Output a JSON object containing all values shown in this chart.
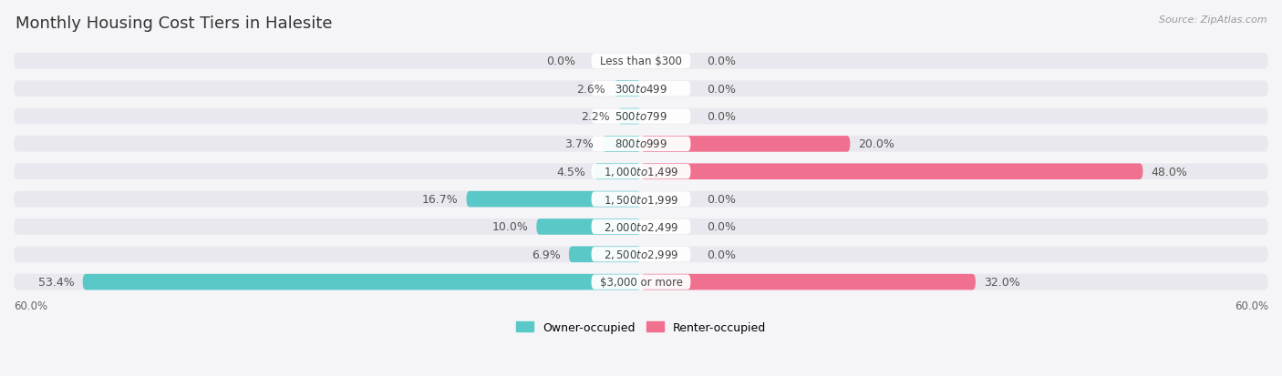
{
  "title": "Monthly Housing Cost Tiers in Halesite",
  "source": "Source: ZipAtlas.com",
  "categories": [
    "Less than $300",
    "$300 to $499",
    "$500 to $799",
    "$800 to $999",
    "$1,000 to $1,499",
    "$1,500 to $1,999",
    "$2,000 to $2,499",
    "$2,500 to $2,999",
    "$3,000 or more"
  ],
  "owner_values": [
    0.0,
    2.6,
    2.2,
    3.7,
    4.5,
    16.7,
    10.0,
    6.9,
    53.4
  ],
  "renter_values": [
    0.0,
    0.0,
    0.0,
    20.0,
    48.0,
    0.0,
    0.0,
    0.0,
    32.0
  ],
  "owner_color": "#5bc8c8",
  "renter_color": "#f07090",
  "owner_color_light": "#a8dede",
  "renter_color_light": "#f5aac0",
  "row_bg_color": "#e8e8ee",
  "page_bg_color": "#f5f5f8",
  "xlim": 60.0,
  "label_fontsize": 9.0,
  "cat_fontsize": 8.5,
  "title_fontsize": 13,
  "source_fontsize": 8,
  "legend_fontsize": 9
}
